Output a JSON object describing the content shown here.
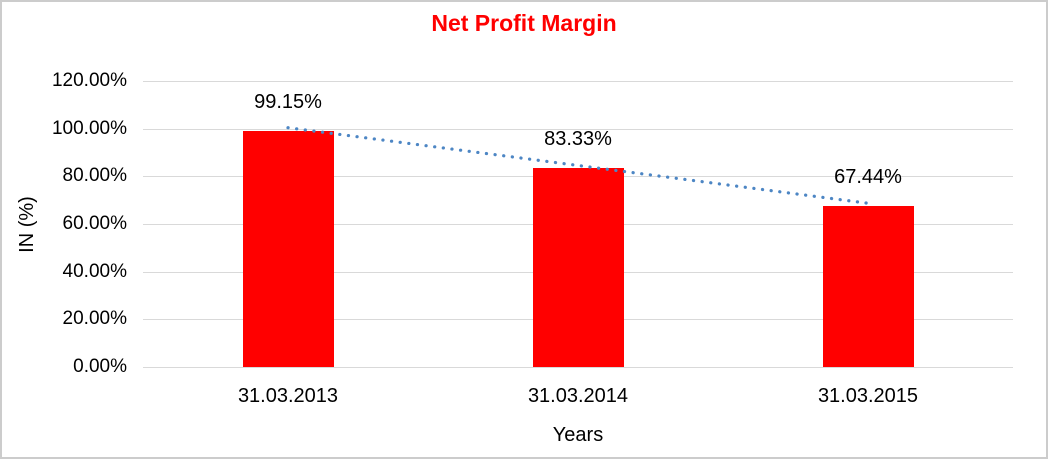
{
  "frame": {
    "background_color": "#ffffff",
    "border_color": "#cccccc"
  },
  "chart_data": {
    "type": "bar",
    "title": "Net Profit Margin",
    "title_color": "#ff0000",
    "categories": [
      "31.03.2013",
      "31.03.2014",
      "31.03.2015"
    ],
    "values": [
      99.15,
      83.33,
      67.44
    ],
    "value_labels": [
      "99.15%",
      "83.33%",
      "67.44%"
    ],
    "bar_color": "#ff0000",
    "xlabel": "Years",
    "ylabel": "IN (%)",
    "ylim": [
      0,
      120
    ],
    "y_tick_step": 20,
    "y_tick_labels": [
      "0.00%",
      "20.00%",
      "40.00%",
      "60.00%",
      "80.00%",
      "100.00%",
      "120.00%"
    ],
    "grid": true,
    "gridline_color": "#d9d9d9",
    "legend": "none",
    "text_color": "#000000",
    "trendline": {
      "type": "linear",
      "style": "dotted",
      "color": "#4d86c4"
    }
  }
}
